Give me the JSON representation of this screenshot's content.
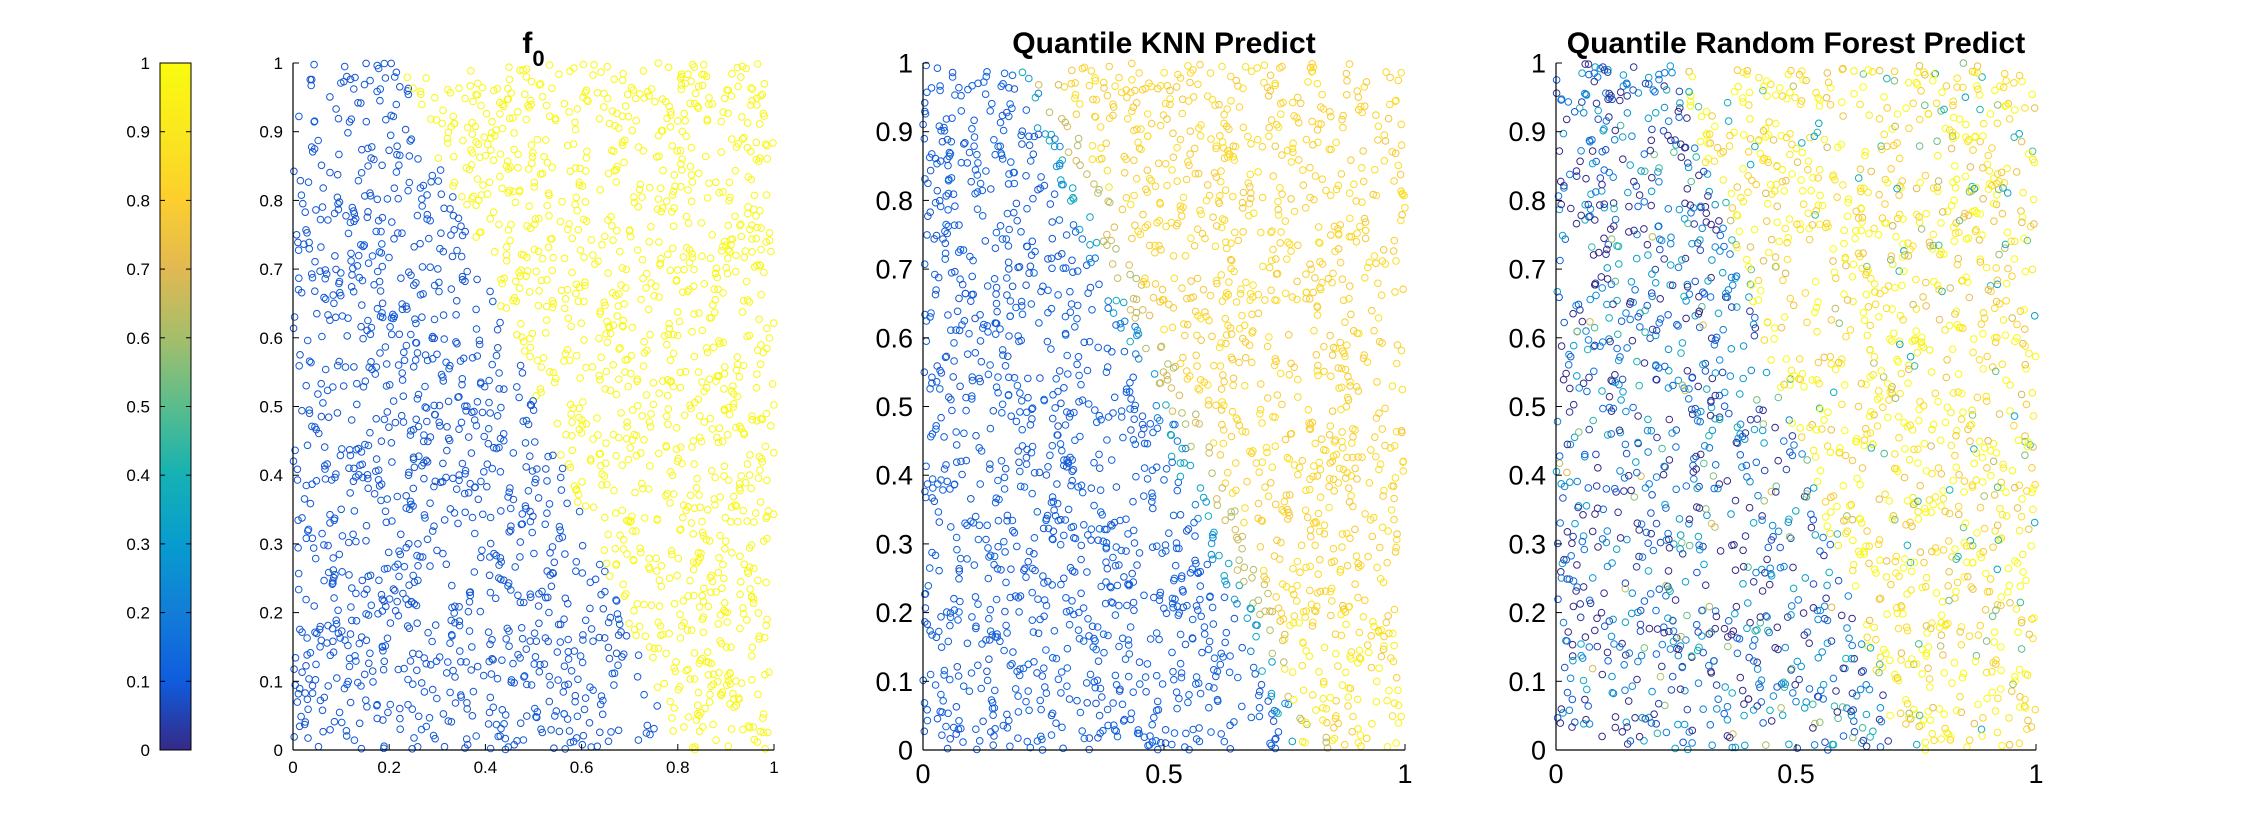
{
  "chart_data": [
    {
      "type": "colorbar",
      "colormap": "parula",
      "ylim": [
        0,
        1
      ],
      "ticks": [
        "0",
        "0.1",
        "0.2",
        "0.3",
        "0.4",
        "0.5",
        "0.6",
        "0.7",
        "0.8",
        "0.9",
        "1"
      ]
    },
    {
      "type": "scatter",
      "title": "f",
      "title_subscript": "0",
      "xlim": [
        0,
        1
      ],
      "ylim": [
        0,
        1
      ],
      "xticks": [
        "0",
        "0.2",
        "0.4",
        "0.6",
        "0.8",
        "1"
      ],
      "yticks": [
        "0",
        "0.1",
        "0.2",
        "0.3",
        "0.4",
        "0.5",
        "0.6",
        "0.7",
        "0.8",
        "0.9",
        "1"
      ],
      "marker": "open-circle",
      "n_points": 2200,
      "boundary": {
        "description": "line from (0.22,1) to (0.80,0); left region low, right region high",
        "top_x": 0.22,
        "bottom_x": 0.8
      },
      "region_values": {
        "left": 0.08,
        "right": 0.98
      },
      "noise": 0.0
    },
    {
      "type": "scatter",
      "title": "Quantile KNN Predict",
      "xlim": [
        0,
        1
      ],
      "ylim": [
        0,
        1
      ],
      "xticks": [
        "0",
        "0.5",
        "1"
      ],
      "yticks": [
        "0",
        "0.1",
        "0.2",
        "0.3",
        "0.4",
        "0.5",
        "0.6",
        "0.7",
        "0.8",
        "0.9",
        "1"
      ],
      "marker": "open-circle",
      "n_points": 2200,
      "boundary": {
        "top_x": 0.22,
        "bottom_x": 0.8
      },
      "region_values": {
        "left": 0.08,
        "right": 0.82,
        "transition": 0.6
      },
      "noise": 0.04
    },
    {
      "type": "scatter",
      "title": "Quantile Random Forest Predict",
      "xlim": [
        0,
        1
      ],
      "ylim": [
        0,
        1
      ],
      "xticks": [
        "0",
        "0.5",
        "1"
      ],
      "yticks": [
        "0",
        "0.1",
        "0.2",
        "0.3",
        "0.4",
        "0.5",
        "0.6",
        "0.7",
        "0.8",
        "0.9",
        "1"
      ],
      "marker": "open-circle",
      "n_points": 2200,
      "boundary": {
        "top_x": 0.24,
        "bottom_x": 0.72
      },
      "region_values": {
        "left": 0.12,
        "right": 0.92
      },
      "noise": 0.22
    }
  ]
}
